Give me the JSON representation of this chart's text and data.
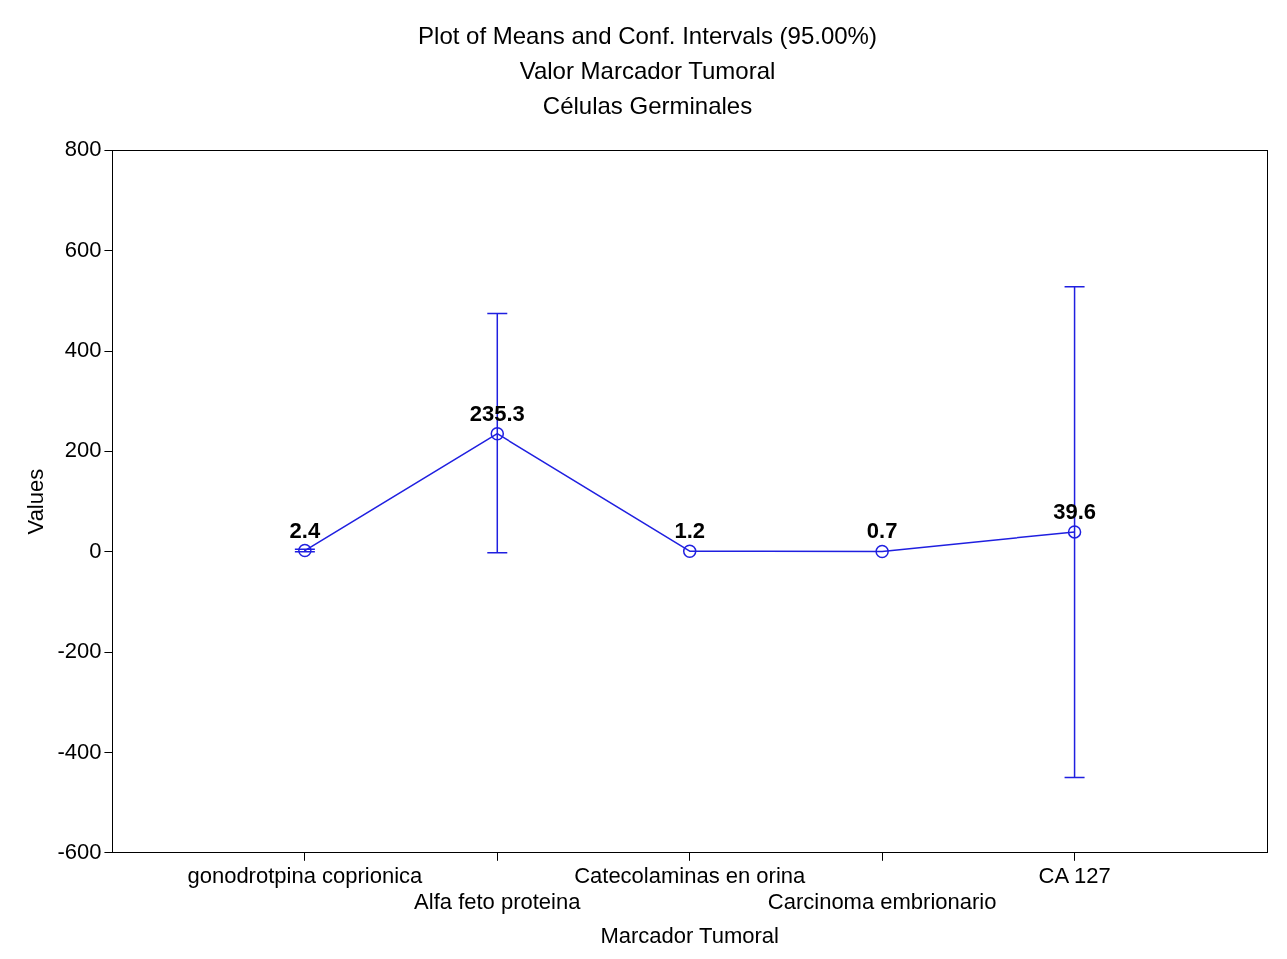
{
  "chart_data": {
    "type": "line",
    "title": "Plot of Means and Conf. Intervals (95.00%)\nValor Marcador Tumoral\nCélulas Germinales",
    "xlabel": "Marcador Tumoral",
    "ylabel": "Values",
    "categories": [
      "gonodrotpina coprionica",
      "Alfa feto proteina",
      "Catecolaminas en orina",
      "Carcinoma embrionario",
      "CA 127"
    ],
    "series": [
      {
        "color": "#1f1fe0",
        "values": [
          2.4,
          235.3,
          1.2,
          0.7,
          39.6
        ],
        "errors": [
          [
            0,
            5
          ],
          [
            -2,
            475
          ],
          null,
          null,
          [
            -450,
            528
          ]
        ]
      }
    ],
    "ylim": [
      -600,
      800
    ],
    "yticks": [
      -600,
      -400,
      -200,
      0,
      200,
      400,
      600,
      800
    ],
    "data_labels": true,
    "grid": false,
    "legend": false,
    "marker": "circle",
    "line_style": "solid"
  }
}
